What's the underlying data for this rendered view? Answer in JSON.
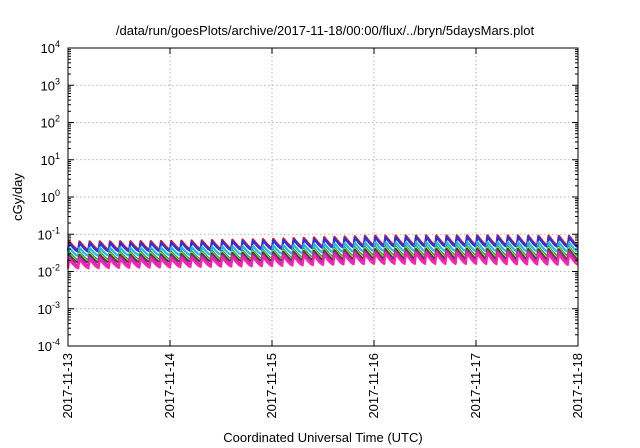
{
  "chart_data": {
    "type": "line",
    "title": "/data/run/goesPlots/archive/2017-11-18/00:00/flux/../bryn/5daysMars.plot",
    "xlabel": "Coordinated Universal Time (UTC)",
    "ylabel": "cGy/day",
    "x_range": [
      "2017-11-13T00:00",
      "2017-11-18T00:00"
    ],
    "x_ticks": [
      "2017-11-13",
      "2017-11-14",
      "2017-11-15",
      "2017-11-16",
      "2017-11-17",
      "2017-11-18"
    ],
    "y_scale": "log",
    "ylim": [
      0.0001,
      10000
    ],
    "y_ticks": [
      {
        "base": "10",
        "exp": "-4"
      },
      {
        "base": "10",
        "exp": "-3"
      },
      {
        "base": "10",
        "exp": "-2"
      },
      {
        "base": "10",
        "exp": "-1"
      },
      {
        "base": "10",
        "exp": "0"
      },
      {
        "base": "10",
        "exp": "1"
      },
      {
        "base": "10",
        "exp": "2"
      },
      {
        "base": "10",
        "exp": "3"
      },
      {
        "base": "10",
        "exp": "4"
      }
    ],
    "grid": true,
    "legend": "none",
    "pattern": "sawtooth with about 10 cycles per day; each cycle rises sharply to a peak and decays to a trough",
    "series": [
      {
        "color": "#e8141e",
        "peaks": [
          0.064,
          0.066,
          0.075,
          0.092,
          0.094,
          0.09
        ],
        "troughs": [
          0.038,
          0.039,
          0.043,
          0.051,
          0.052,
          0.05
        ]
      },
      {
        "color": "#2233ee",
        "peaks": [
          0.058,
          0.06,
          0.068,
          0.083,
          0.085,
          0.082
        ],
        "troughs": [
          0.034,
          0.035,
          0.039,
          0.046,
          0.047,
          0.045
        ]
      },
      {
        "color": "#22b8e8",
        "peaks": [
          0.043,
          0.044,
          0.05,
          0.061,
          0.062,
          0.06
        ],
        "troughs": [
          0.026,
          0.027,
          0.029,
          0.035,
          0.035,
          0.034
        ]
      },
      {
        "color": "#20a060",
        "peaks": [
          0.033,
          0.034,
          0.038,
          0.047,
          0.048,
          0.046
        ],
        "troughs": [
          0.02,
          0.021,
          0.022,
          0.027,
          0.027,
          0.026
        ]
      },
      {
        "color": "#d8d820",
        "peaks": [
          0.03,
          0.031,
          0.035,
          0.043,
          0.044,
          0.042
        ],
        "troughs": [
          0.018,
          0.019,
          0.02,
          0.024,
          0.024,
          0.023
        ]
      },
      {
        "color": "#444444",
        "peaks": [
          0.028,
          0.029,
          0.033,
          0.04,
          0.041,
          0.039
        ],
        "troughs": [
          0.017,
          0.018,
          0.019,
          0.022,
          0.022,
          0.021
        ]
      },
      {
        "color": "#cc22cc",
        "peaks": [
          0.024,
          0.025,
          0.028,
          0.034,
          0.035,
          0.033
        ],
        "troughs": [
          0.014,
          0.015,
          0.016,
          0.019,
          0.019,
          0.018
        ]
      },
      {
        "color": "#ff22aa",
        "peaks": [
          0.021,
          0.022,
          0.025,
          0.03,
          0.031,
          0.029
        ],
        "troughs": [
          0.012,
          0.013,
          0.014,
          0.016,
          0.016,
          0.015
        ]
      }
    ]
  }
}
